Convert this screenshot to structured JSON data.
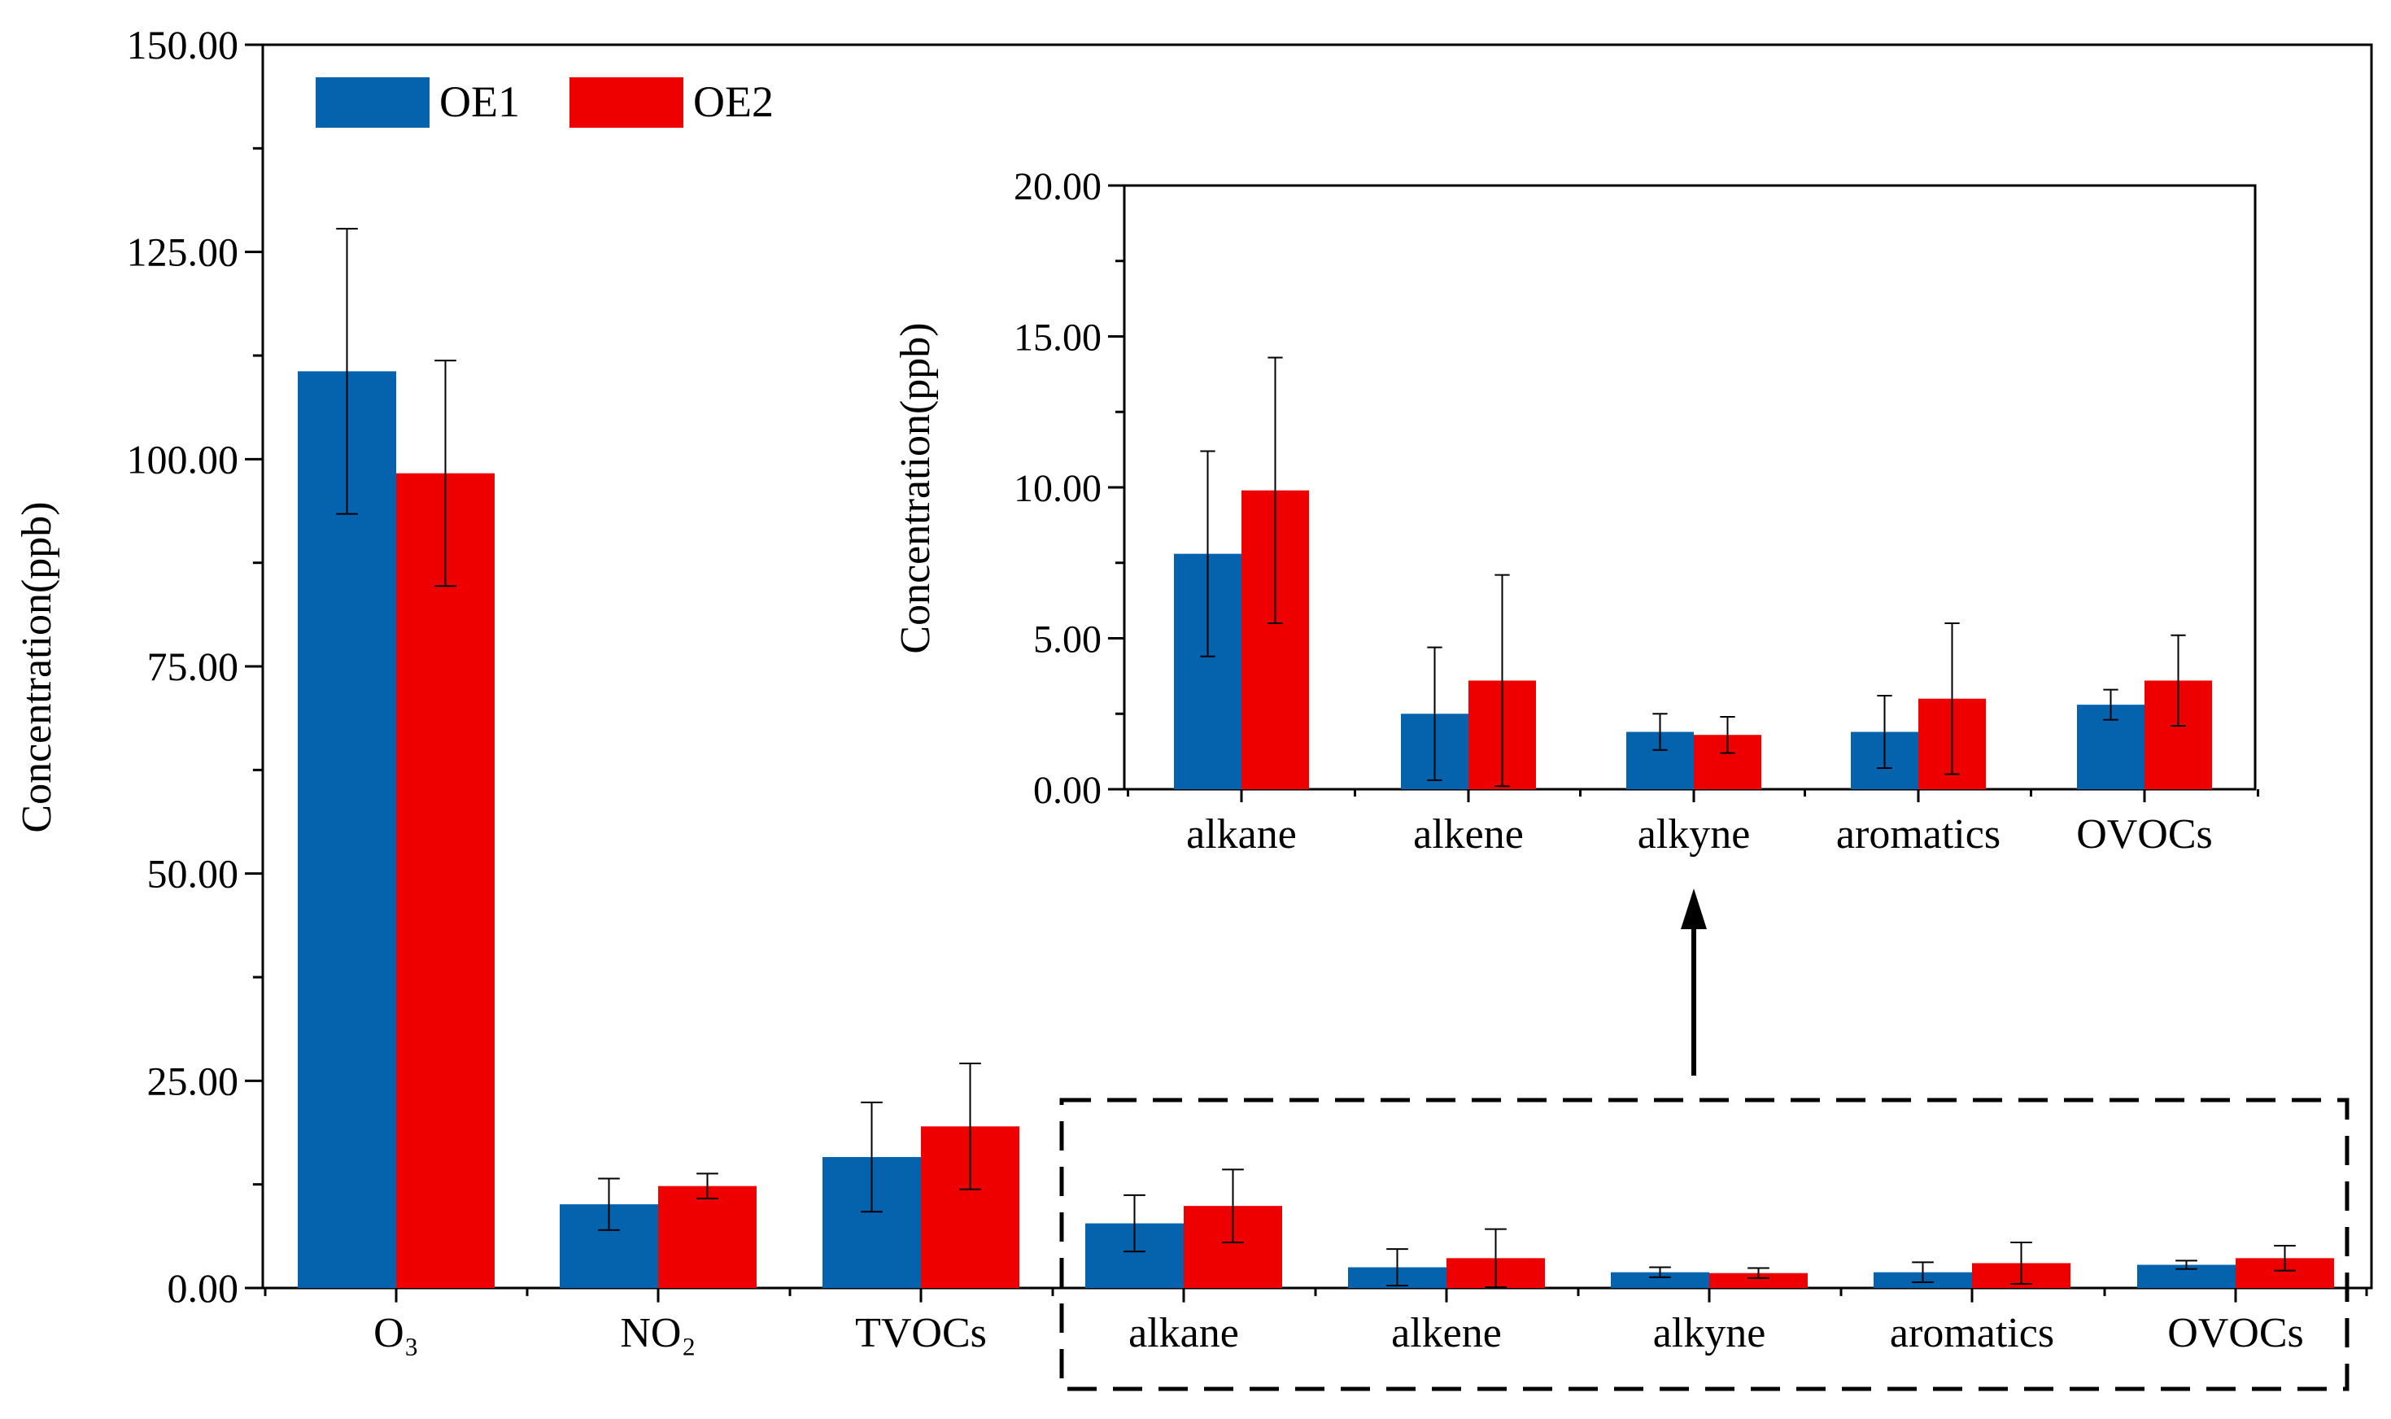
{
  "colors": {
    "OE1": "#0563AE",
    "OE2": "#EE0000",
    "axis": "#000000"
  },
  "chart_data": [
    {
      "type": "bar",
      "role": "main",
      "categories": [
        "O₃",
        "NO₂",
        "TVOCs",
        "alkane",
        "alkene",
        "alkyne",
        "aromatics",
        "OVOCs"
      ],
      "series": [
        {
          "name": "OE1",
          "values": [
            110.6,
            10.1,
            15.8,
            7.8,
            2.5,
            1.9,
            1.9,
            2.8
          ],
          "errors": [
            17.2,
            3.1,
            6.6,
            3.4,
            2.2,
            0.6,
            1.2,
            0.5
          ]
        },
        {
          "name": "OE2",
          "values": [
            98.3,
            12.3,
            19.5,
            9.9,
            3.6,
            1.8,
            3.0,
            3.6
          ],
          "errors": [
            13.6,
            1.5,
            7.6,
            4.4,
            3.5,
            0.6,
            2.5,
            1.5
          ]
        }
      ],
      "ylabel": "Concentration(ppb)",
      "ylim": [
        0,
        150
      ],
      "yticks": [
        "0.00",
        "25.00",
        "50.00",
        "75.00",
        "100.00",
        "125.00",
        "150.00"
      ],
      "legend": [
        "OE1",
        "OE2"
      ],
      "legend_position": "top-left"
    },
    {
      "type": "bar",
      "role": "inset",
      "categories": [
        "alkane",
        "alkene",
        "alkyne",
        "aromatics",
        "OVOCs"
      ],
      "series": [
        {
          "name": "OE1",
          "values": [
            7.8,
            2.5,
            1.9,
            1.9,
            2.8
          ],
          "errors": [
            3.4,
            2.2,
            0.6,
            1.2,
            0.5
          ]
        },
        {
          "name": "OE2",
          "values": [
            9.9,
            3.6,
            1.8,
            3.0,
            3.6
          ],
          "errors": [
            4.4,
            3.5,
            0.6,
            2.5,
            1.5
          ]
        }
      ],
      "ylabel": "Concentration(ppb)",
      "ylim": [
        0,
        20
      ],
      "yticks": [
        "0.00",
        "5.00",
        "10.00",
        "15.00",
        "20.00"
      ]
    }
  ]
}
